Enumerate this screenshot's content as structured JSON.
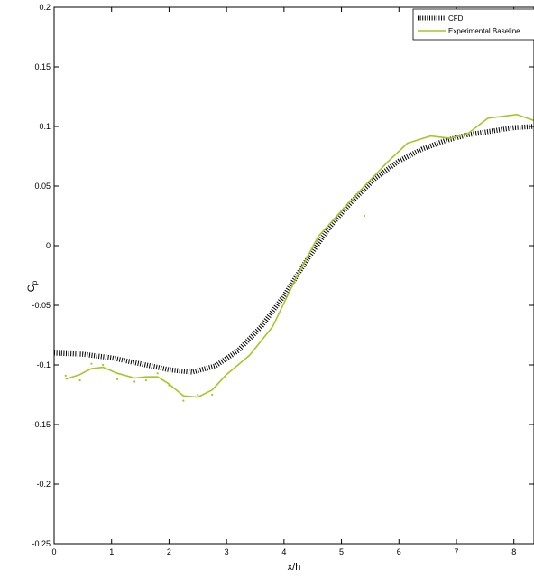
{
  "chart_data": {
    "type": "line",
    "title": "",
    "xlabel": "x/h",
    "ylabel": "C",
    "ylabel_subscript": "p",
    "xlim": [
      0,
      8.35
    ],
    "ylim": [
      -0.25,
      0.2
    ],
    "xticks": [
      0,
      1,
      2,
      3,
      4,
      5,
      6,
      7,
      8
    ],
    "xtick_labels": [
      "0",
      "1",
      "2",
      "3",
      "4",
      "5",
      "6",
      "7",
      "8"
    ],
    "yticks": [
      0.2,
      0.15,
      0.1,
      0.05,
      0,
      -0.05,
      -0.1,
      -0.15,
      -0.2,
      -0.25
    ],
    "ytick_labels": [
      "0.2",
      "0.15",
      "0.1",
      "0.05",
      "0",
      "-0.05",
      "-0.1",
      "-0.15",
      "-0.2",
      "-0.25"
    ],
    "grid": false,
    "legend_position": "top-right",
    "series": [
      {
        "name": "CFD",
        "color": "#000000",
        "style": "dotted-thick",
        "x": [
          0,
          0.5,
          1.0,
          1.5,
          2.0,
          2.4,
          2.8,
          3.2,
          3.6,
          4.0,
          4.4,
          4.8,
          5.2,
          5.6,
          6.0,
          6.4,
          6.8,
          7.2,
          7.6,
          8.0,
          8.35
        ],
        "y": [
          -0.09,
          -0.091,
          -0.094,
          -0.099,
          -0.104,
          -0.106,
          -0.101,
          -0.088,
          -0.068,
          -0.042,
          -0.012,
          0.016,
          0.038,
          0.057,
          0.071,
          0.081,
          0.088,
          0.093,
          0.096,
          0.099,
          0.1
        ]
      },
      {
        "name": "Experimental Baseline",
        "color": "#a9c42a",
        "style": "solid",
        "x": [
          0.2,
          0.45,
          0.65,
          0.85,
          1.1,
          1.4,
          1.6,
          1.8,
          2.0,
          2.25,
          2.5,
          2.75,
          3.0,
          3.4,
          3.8,
          4.2,
          4.6,
          5.0,
          5.4,
          5.8,
          6.15,
          6.55,
          6.9,
          7.2,
          7.55,
          8.05,
          8.35
        ],
        "y": [
          -0.112,
          -0.108,
          -0.103,
          -0.102,
          -0.107,
          -0.111,
          -0.11,
          -0.11,
          -0.116,
          -0.126,
          -0.127,
          -0.121,
          -0.108,
          -0.092,
          -0.068,
          -0.028,
          0.008,
          0.029,
          0.05,
          0.07,
          0.086,
          0.092,
          0.09,
          0.094,
          0.107,
          0.11,
          0.105
        ]
      }
    ],
    "markers": {
      "x": [
        0.2,
        0.45,
        0.65,
        0.85,
        1.1,
        1.4,
        1.6,
        1.8,
        2.0,
        2.25,
        2.5,
        2.75,
        5.4
      ],
      "y": [
        -0.109,
        -0.113,
        -0.099,
        -0.1,
        -0.112,
        -0.114,
        -0.113,
        -0.107,
        -0.117,
        -0.13,
        -0.125,
        -0.125,
        0.025
      ]
    }
  }
}
